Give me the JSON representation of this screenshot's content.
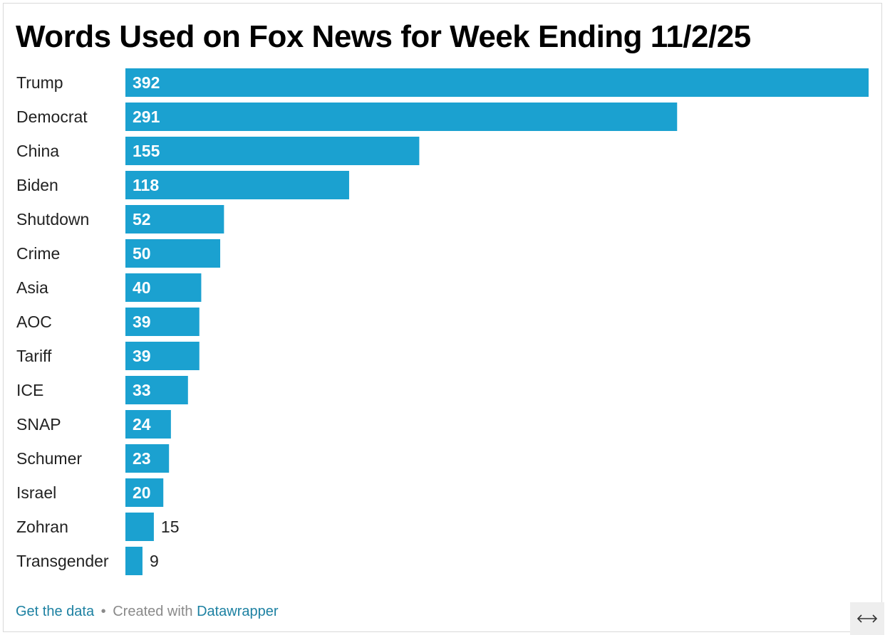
{
  "chart_data": {
    "type": "bar",
    "orientation": "horizontal",
    "title": "Words Used on Fox News for Week Ending 11/2/25",
    "categories": [
      "Trump",
      "Democrat",
      "China",
      "Biden",
      "Shutdown",
      "Crime",
      "Asia",
      "AOC",
      "Tariff",
      "ICE",
      "SNAP",
      "Schumer",
      "Israel",
      "Zohran",
      "Transgender"
    ],
    "values": [
      392,
      291,
      155,
      118,
      52,
      50,
      40,
      39,
      39,
      33,
      24,
      23,
      20,
      15,
      9
    ],
    "xlim": [
      0,
      392
    ],
    "grid": false,
    "legend": "none",
    "bar_color": "#1ba1d0"
  },
  "footer": {
    "get_data_label": "Get the data",
    "separator": "•",
    "created_with_label": "Created with",
    "datawrapper_label": "Datawrapper"
  },
  "controls": {
    "resize_icon": "horizontal-resize-icon"
  }
}
